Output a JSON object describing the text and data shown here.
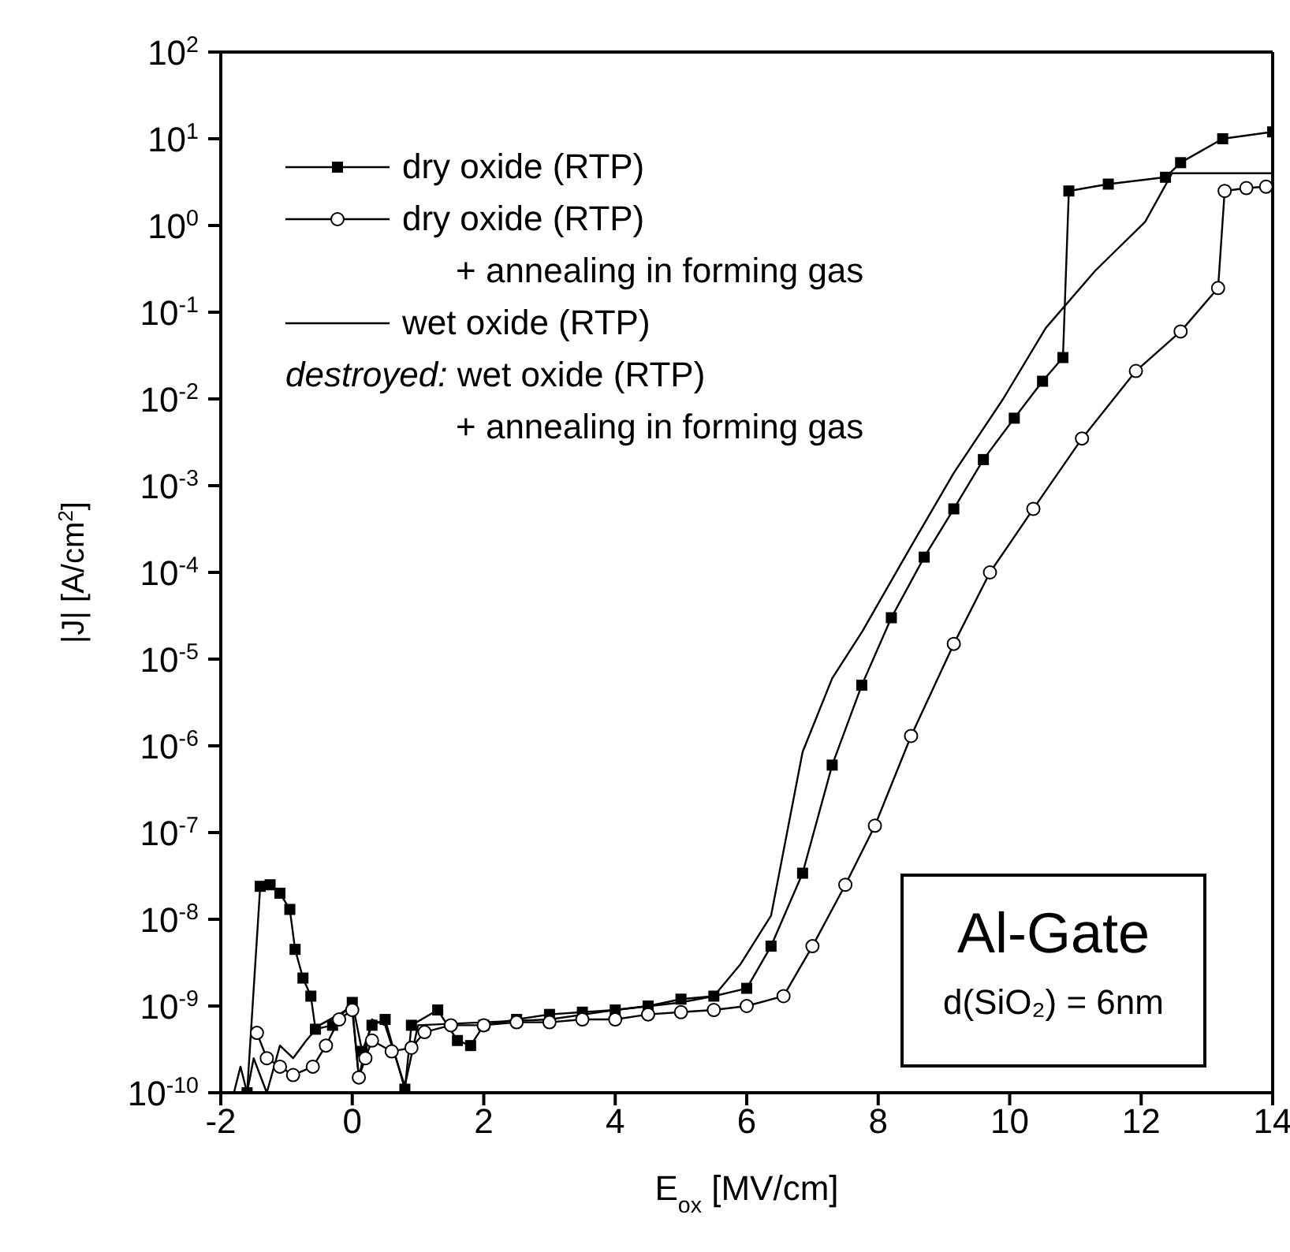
{
  "chart_data": {
    "type": "line",
    "xlabel": "E$_{ox}$ [MV/cm]",
    "ylabel": "|J| [A/cm$^{2}$]",
    "xlim": [
      -2,
      14
    ],
    "xticks": [
      -2,
      0,
      2,
      4,
      6,
      8,
      10,
      12,
      14
    ],
    "ylim": [
      1e-10,
      100
    ],
    "log": "y",
    "yticks": [
      {
        "value": 1e-10,
        "label": "10$^{-10}$"
      },
      {
        "value": 1e-09,
        "label": "10$^{-9}$"
      },
      {
        "value": 1e-08,
        "label": "10$^{-8}$"
      },
      {
        "value": 1e-07,
        "label": "10$^{-7}$"
      },
      {
        "value": 1e-06,
        "label": "10$^{-6}$"
      },
      {
        "value": 1e-05,
        "label": "10$^{-5}$"
      },
      {
        "value": 0.0001,
        "label": "10$^{-4}$"
      },
      {
        "value": 0.001,
        "label": "10$^{-3}$"
      },
      {
        "value": 0.01,
        "label": "10$^{-2}$"
      },
      {
        "value": 0.1,
        "label": "10$^{-1}$"
      },
      {
        "value": 1,
        "label": "10$^{0}$"
      },
      {
        "value": 10,
        "label": "10$^{1}$"
      },
      {
        "value": 100,
        "label": "10$^{2}$"
      }
    ],
    "legend": "top left",
    "line_style": "solid",
    "series": [
      {
        "name": "dry oxide (RTP)",
        "color": "#000000",
        "marker": "square",
        "x": [
          -1.6,
          -1.4,
          -1.25,
          -1.1,
          -0.95,
          -0.87,
          -0.75,
          -0.63,
          -0.56,
          -0.3,
          0,
          0.15,
          0.3,
          0.5,
          0.8,
          0.9,
          1.3,
          1.6,
          1.8,
          2,
          2.5,
          3,
          3.5,
          4,
          4.5,
          5,
          5.5,
          6,
          6.37,
          6.85,
          7.3,
          7.75,
          8.2,
          8.7,
          9.15,
          9.6,
          10.07,
          10.5,
          10.81,
          10.9,
          11.5,
          12.37,
          12.6,
          13.24,
          14
        ],
        "values": [
          1e-10,
          2.4e-08,
          2.5e-08,
          2e-08,
          1.3e-08,
          4.5e-09,
          2.1e-09,
          1.3e-09,
          5.4e-10,
          6e-10,
          1.1e-09,
          3e-10,
          6e-10,
          7e-10,
          1.1e-10,
          6e-10,
          9e-10,
          4e-10,
          3.5e-10,
          6e-10,
          7e-10,
          8e-10,
          8.5e-10,
          9e-10,
          1e-09,
          1.2e-09,
          1.3e-09,
          1.6e-09,
          4.9e-09,
          3.4e-08,
          6e-07,
          5e-06,
          3e-05,
          0.00015,
          0.00054,
          0.002,
          0.006,
          0.016,
          0.03,
          2.5,
          3,
          3.6,
          5.3,
          10,
          12
        ]
      },
      {
        "name": "dry oxide (RTP)\n+ annealing in forming gas",
        "color": "#000000",
        "marker": "circle",
        "x": [
          -1.45,
          -1.3,
          -1.1,
          -0.9,
          -0.6,
          -0.4,
          -0.2,
          0,
          0.1,
          0.2,
          0.3,
          0.6,
          0.9,
          1.1,
          1.5,
          2,
          2.5,
          3,
          3.5,
          4,
          4.5,
          5,
          5.5,
          6,
          6.56,
          7.0,
          7.5,
          7.95,
          8.5,
          9.15,
          9.7,
          10.36,
          11.1,
          11.92,
          12.6,
          13.17,
          13.27,
          13.6,
          13.9
        ],
        "values": [
          4.9e-10,
          2.5e-10,
          2e-10,
          1.6e-10,
          2e-10,
          3.5e-10,
          7e-10,
          9e-10,
          1.5e-10,
          2.5e-10,
          4e-10,
          3e-10,
          3.3e-10,
          5e-10,
          6e-10,
          6e-10,
          6.5e-10,
          6.5e-10,
          7e-10,
          7e-10,
          8e-10,
          8.5e-10,
          9e-10,
          1e-09,
          1.3e-09,
          4.9e-09,
          2.5e-08,
          1.2e-07,
          1.3e-06,
          1.5e-05,
          0.0001,
          0.00054,
          0.0035,
          0.021,
          0.06,
          0.19,
          2.5,
          2.7,
          2.8
        ]
      },
      {
        "name": "wet oxide (RTP)",
        "color": "#000000",
        "marker": "none",
        "x": [
          -1.8,
          -1.7,
          -1.6,
          -1.5,
          -1.3,
          -1.1,
          -0.9,
          -0.7,
          -0.5,
          -0.2,
          0,
          0.1,
          0.3,
          0.5,
          0.8,
          1,
          2,
          3,
          4,
          5,
          5.5,
          5.9,
          6.37,
          6.85,
          7.3,
          7.76,
          8.5,
          9.15,
          9.9,
          10.55,
          11.3,
          12.06,
          12.47,
          14
        ],
        "values": [
          1e-10,
          2e-10,
          1e-10,
          2.5e-10,
          1e-10,
          3.5e-10,
          2.5e-10,
          4e-10,
          6e-10,
          8e-10,
          1e-09,
          1.5e-10,
          7e-10,
          6e-10,
          1.2e-10,
          6e-10,
          6.5e-10,
          7e-10,
          9e-10,
          1.1e-09,
          1.3e-09,
          3e-09,
          1.1e-08,
          8.5e-07,
          6e-06,
          2.1e-05,
          0.0002,
          0.0014,
          0.01,
          0.066,
          0.3,
          1.1,
          4,
          4
        ]
      }
    ],
    "annotations": [
      "destroyed: wet oxide (RTP)\n+ annealing in forming gas",
      "Al-Gate",
      "d(SiO₂) = 6nm"
    ]
  }
}
